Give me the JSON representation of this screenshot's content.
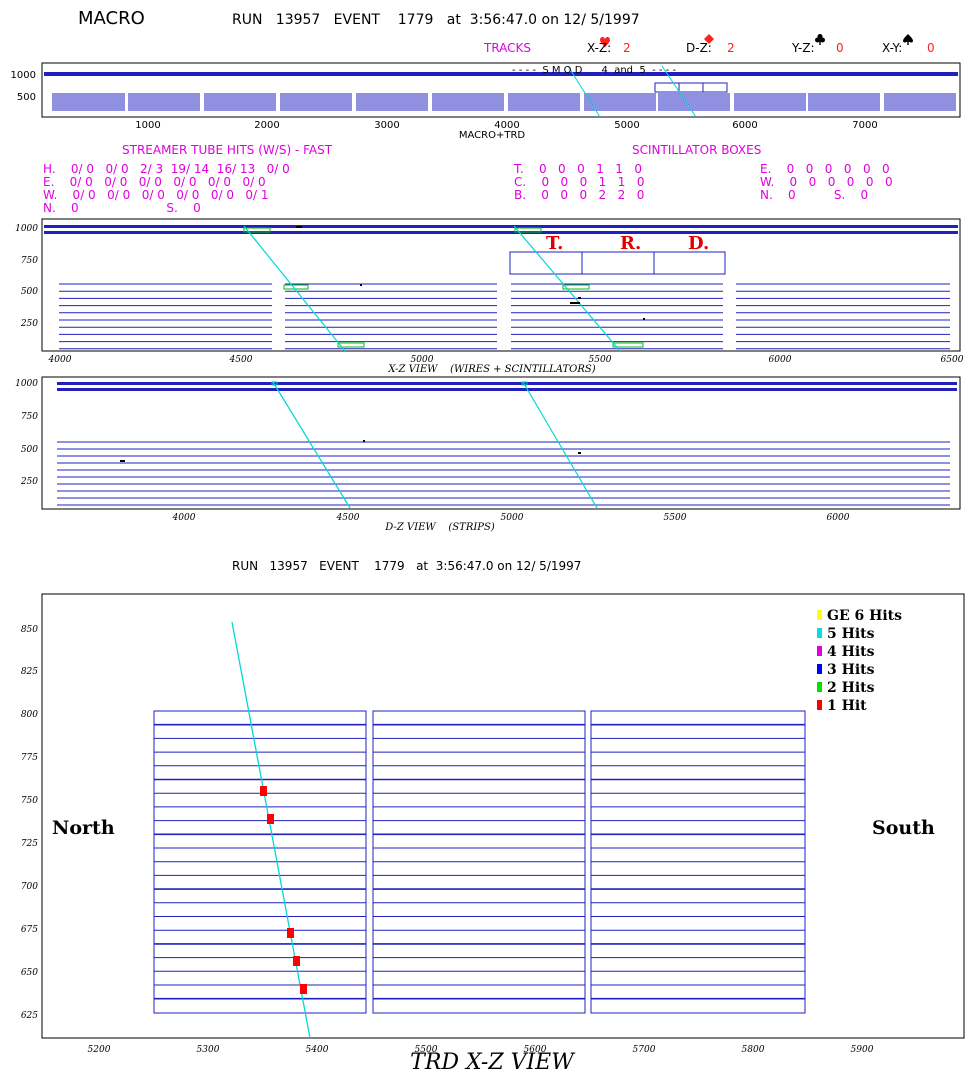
{
  "header": {
    "macro": "MACRO",
    "run_line": "RUN   13957   EVENT    1779   at  3:56:47.0 on 12/ 5/1997",
    "tracks_label": "TRACKS",
    "xz_label": "X-Z:",
    "xz_value": "2",
    "dz_label": "D-Z:",
    "dz_value": "2",
    "yz_label": "Y-Z:",
    "yz_value": "0",
    "xy_label": "X-Y:",
    "xy_value": "0",
    "heart_icon": "heart-icon",
    "diamond_icon": "diamond-icon",
    "club_icon": "club-icon",
    "spade_icon": "spade-icon"
  },
  "overview": {
    "smod_label": "- - - -  S M O D      4  and  5  - - - -",
    "xlabel": "MACRO+TRD",
    "yticks": [
      "1000",
      "500"
    ],
    "xticks": [
      "1000",
      "2000",
      "3000",
      "4000",
      "5000",
      "6000",
      "7000"
    ]
  },
  "streamer": {
    "title": "STREAMER TUBE HITS (W/S)  -  FAST",
    "rows": [
      "H.    0/ 0   0/ 0   2/ 3  19/ 14  16/ 13   0/ 0",
      "E.    0/ 0   0/ 0   0/ 0   0/ 0   0/ 0   0/ 0",
      "W.    0/ 0   0/ 0   0/ 0   0/ 0   0/ 0   0/ 1",
      "N.    0                       S.    0"
    ]
  },
  "scint": {
    "title": "SCINTILLATOR  BOXES",
    "left_rows": [
      "T.    0   0   0   1   1   0",
      "C.    0   0   0   1   1   0",
      "B.    0   0   0   2   2   0"
    ],
    "right_rows": [
      "E.    0   0   0   0   0   0",
      "W.    0   0   0   0   0   0",
      "N.    0          S.    0"
    ]
  },
  "xz_view": {
    "title": "X-Z VIEW    (WIRES + SCINTILLATORS)",
    "trd_letters": [
      "T.",
      "R.",
      "D."
    ],
    "yticks": [
      "1000",
      "750",
      "500",
      "250"
    ],
    "xticks": [
      "4000",
      "4500",
      "5000",
      "5500",
      "6000",
      "6500"
    ]
  },
  "dz_view": {
    "title": "D-Z VIEW    (STRIPS)",
    "yticks": [
      "1000",
      "750",
      "500",
      "250"
    ],
    "xticks": [
      "4000",
      "4500",
      "5000",
      "5500",
      "6000"
    ]
  },
  "trd": {
    "run_line": "RUN   13957   EVENT    1779   at  3:56:47.0 on 12/ 5/1997",
    "title": "TRD X-Z VIEW",
    "north": "North",
    "south": "South",
    "yticks": [
      "850",
      "825",
      "800",
      "775",
      "750",
      "725",
      "700",
      "675",
      "650",
      "625"
    ],
    "xticks": [
      "5200",
      "5300",
      "5400",
      "5500",
      "5600",
      "5700",
      "5800",
      "5900"
    ],
    "legend": [
      {
        "label": "GE 6 Hits",
        "color": "#ffff00"
      },
      {
        "label": "5 Hits",
        "color": "#00e0e0"
      },
      {
        "label": "4 Hits",
        "color": "#e000e0"
      },
      {
        "label": "3 Hits",
        "color": "#0000ff"
      },
      {
        "label": "2 Hits",
        "color": "#00e000"
      },
      {
        "label": "1 Hit",
        "color": "#ff0000"
      }
    ]
  },
  "colors": {
    "frame": "#2020c0",
    "track": "#00d8d8",
    "hit": "#ff0000",
    "green": "#00c000"
  }
}
